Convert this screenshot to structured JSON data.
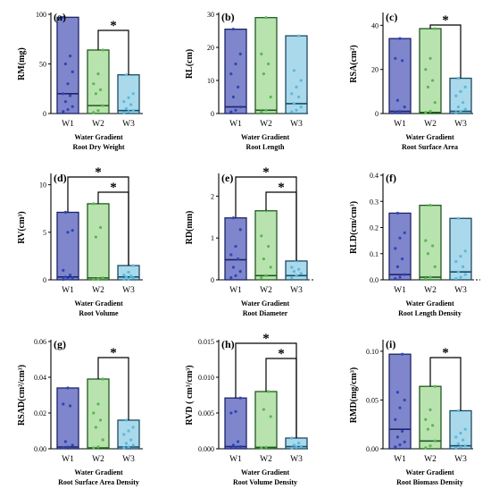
{
  "figure": {
    "colors": {
      "W1": {
        "fill": "#7f86cc",
        "stroke": "#1c2468",
        "point": "#2f46b5"
      },
      "W2": {
        "fill": "#b9e3ae",
        "stroke": "#1f5a1f",
        "point": "#59b84f"
      },
      "W3": {
        "fill": "#a9d9ea",
        "stroke": "#1b4a63",
        "point": "#5cb8dd"
      }
    }
  },
  "chart_data": [
    {
      "panel": "(a)",
      "type": "bar",
      "ylabel": "RM(mg)",
      "xlabel": "Water Gradient",
      "subtitle": "Root Dry Weight",
      "categories": [
        "W1",
        "W2",
        "W3"
      ],
      "ylim": [
        0,
        100
      ],
      "yticks": [
        0,
        50,
        100
      ],
      "ytick_labels": [
        "0",
        "50",
        "100"
      ],
      "series": [
        {
          "values": [
            97,
            64,
            39
          ],
          "medians": [
            20,
            8,
            3
          ],
          "points": [
            [
              2,
              4,
              7,
              12,
              18,
              20,
              30,
              42,
              50,
              58,
              97
            ],
            [
              1,
              3,
              8,
              20,
              24,
              30,
              40,
              64
            ],
            [
              1,
              2,
              3,
              5,
              9,
              12,
              16,
              20,
              39
            ]
          ]
        }
      ],
      "significance": [
        {
          "from": "W2",
          "to": "W3",
          "label": "*"
        }
      ],
      "zero_line": false
    },
    {
      "panel": "(b)",
      "type": "bar",
      "ylabel": "RL(cm)",
      "xlabel": "Water Gradient",
      "subtitle": "Root Length",
      "categories": [
        "W1",
        "W2",
        "W3"
      ],
      "ylim": [
        0,
        30
      ],
      "yticks": [
        0,
        10,
        20,
        30
      ],
      "ytick_labels": [
        "0",
        "10",
        "20",
        "30"
      ],
      "series": [
        {
          "values": [
            25.5,
            29,
            23.5
          ],
          "medians": [
            2,
            1,
            3
          ],
          "points": [
            [
              0.5,
              1,
              2,
              5,
              8,
              12,
              15,
              18,
              25.5
            ],
            [
              0.5,
              1,
              5,
              12,
              15,
              18,
              29
            ],
            [
              0.5,
              1,
              2,
              3,
              5,
              6,
              8,
              10,
              13,
              23.5
            ]
          ]
        }
      ],
      "significance": [],
      "zero_line": false
    },
    {
      "panel": "(c)",
      "type": "bar",
      "ylabel": "RSA(cm²)",
      "xlabel": "Water Gradient",
      "subtitle": "Root Surface Area",
      "categories": [
        "W1",
        "W2",
        "W3"
      ],
      "ylim": [
        0,
        45
      ],
      "yticks": [
        0,
        20,
        40
      ],
      "ytick_labels": [
        "0",
        "20",
        "40"
      ],
      "series": [
        {
          "values": [
            34,
            38.5,
            16
          ],
          "medians": [
            1,
            0.5,
            1
          ],
          "points": [
            [
              0.5,
              1,
              3,
              6,
              24,
              25,
              34
            ],
            [
              0.5,
              1,
              5,
              12,
              15,
              20,
              25,
              38.5
            ],
            [
              0.5,
              1,
              2,
              3,
              5,
              8,
              10,
              12,
              16
            ]
          ]
        }
      ],
      "significance": [
        {
          "from": "W2",
          "to": "W3",
          "label": "*"
        }
      ],
      "zero_line": false
    },
    {
      "panel": "(d)",
      "type": "bar",
      "ylabel": "RV(cm³)",
      "xlabel": "Water Gradient",
      "subtitle": "Root Volume",
      "categories": [
        "W1",
        "W2",
        "W3"
      ],
      "ylim": [
        0,
        11
      ],
      "yticks": [
        0,
        5,
        10
      ],
      "ytick_labels": [
        "0",
        "5",
        "10"
      ],
      "series": [
        {
          "values": [
            7.1,
            8,
            1.5
          ],
          "medians": [
            0.3,
            0.2,
            0.3
          ],
          "points": [
            [
              0.05,
              0.1,
              0.2,
              0.3,
              0.5,
              1,
              5,
              5.2,
              7.1
            ],
            [
              0.05,
              0.1,
              0.2,
              4.5,
              5.5,
              8
            ],
            [
              0.05,
              0.1,
              0.2,
              0.3,
              0.4,
              0.5,
              0.8,
              1.5
            ]
          ]
        }
      ],
      "significance": [
        {
          "from": "W1",
          "to": "W3",
          "label": "*"
        },
        {
          "from": "W2",
          "to": "W3",
          "label": "*"
        }
      ],
      "zero_line": false
    },
    {
      "panel": "(e)",
      "type": "bar",
      "ylabel": "RD(mm)",
      "xlabel": "Water Gradient",
      "subtitle": "Root Diameter",
      "categories": [
        "W1",
        "W2",
        "W3"
      ],
      "ylim": [
        0,
        2.5
      ],
      "yticks": [
        0,
        1,
        2
      ],
      "ytick_labels": [
        "0",
        "1",
        "2"
      ],
      "series": [
        {
          "values": [
            1.48,
            1.65,
            0.45
          ],
          "medians": [
            0.48,
            0.1,
            0.1
          ],
          "points": [
            [
              0.05,
              0.1,
              0.2,
              0.3,
              0.5,
              0.6,
              0.8,
              1.2,
              1.48
            ],
            [
              0.05,
              0.1,
              0.3,
              0.5,
              0.8,
              1.05,
              1.65
            ],
            [
              0.05,
              0.1,
              0.15,
              0.2,
              0.25,
              0.3,
              0.45
            ]
          ]
        }
      ],
      "significance": [
        {
          "from": "W1",
          "to": "W3",
          "label": "*"
        },
        {
          "from": "W2",
          "to": "W3",
          "label": "*"
        }
      ],
      "zero_line": true
    },
    {
      "panel": "(f)",
      "type": "bar",
      "ylabel": "RLD(cm/cm³)",
      "xlabel": "Water Gradient",
      "subtitle": "Root Length Density",
      "categories": [
        "W1",
        "W2",
        "W3"
      ],
      "ylim": [
        0,
        0.4
      ],
      "yticks": [
        0,
        0.1,
        0.2,
        0.3,
        0.4
      ],
      "ytick_labels": [
        "0.0",
        "0.1",
        "0.2",
        "0.3",
        "0.4"
      ],
      "series": [
        {
          "values": [
            0.255,
            0.285,
            0.235
          ],
          "medians": [
            0.02,
            0.01,
            0.03
          ],
          "points": [
            [
              0.005,
              0.01,
              0.02,
              0.05,
              0.08,
              0.12,
              0.16,
              0.18,
              0.255
            ],
            [
              0.005,
              0.01,
              0.05,
              0.1,
              0.13,
              0.15,
              0.285
            ],
            [
              0.005,
              0.01,
              0.02,
              0.03,
              0.05,
              0.07,
              0.09,
              0.11,
              0.235
            ]
          ]
        }
      ],
      "significance": [],
      "zero_line": true
    },
    {
      "panel": "(g)",
      "type": "bar",
      "ylabel": "RSAD(cm²/cm³)",
      "xlabel": "Water Gradient",
      "subtitle": "Root Surface Area Density",
      "categories": [
        "W1",
        "W2",
        "W3"
      ],
      "ylim": [
        0,
        0.06
      ],
      "yticks": [
        0,
        0.02,
        0.04,
        0.06
      ],
      "ytick_labels": [
        "0.00",
        "0.02",
        "0.04",
        "0.06"
      ],
      "series": [
        {
          "values": [
            0.034,
            0.039,
            0.016
          ],
          "medians": [
            0.001,
            0.0005,
            0.001
          ],
          "points": [
            [
              0.0005,
              0.001,
              0.002,
              0.004,
              0.024,
              0.025,
              0.034
            ],
            [
              0.0005,
              0.001,
              0.005,
              0.012,
              0.016,
              0.02,
              0.025,
              0.039
            ],
            [
              0.0005,
              0.001,
              0.002,
              0.003,
              0.005,
              0.008,
              0.01,
              0.012,
              0.016
            ]
          ]
        }
      ],
      "significance": [
        {
          "from": "W2",
          "to": "W3",
          "label": "*"
        }
      ],
      "zero_line": false
    },
    {
      "panel": "(h)",
      "type": "bar",
      "ylabel": "RVD ( cm³/cm³)",
      "xlabel": "Water Gradient",
      "subtitle": "Root Volume Density",
      "categories": [
        "W1",
        "W2",
        "W3"
      ],
      "ylim": [
        0,
        0.015
      ],
      "yticks": [
        0,
        0.005,
        0.01,
        0.015
      ],
      "ytick_labels": [
        "0.000",
        "0.005",
        "0.010",
        "0.015"
      ],
      "series": [
        {
          "values": [
            0.0071,
            0.008,
            0.0015
          ],
          "medians": [
            0.0003,
            0.0002,
            0.0003
          ],
          "points": [
            [
              0.0001,
              0.0002,
              0.0003,
              0.0005,
              0.001,
              0.005,
              0.0052,
              0.0071
            ],
            [
              0.0001,
              0.0002,
              0.0045,
              0.0055,
              0.008
            ],
            [
              0.0001,
              0.0002,
              0.0003,
              0.0005,
              0.0008,
              0.0015
            ]
          ]
        }
      ],
      "significance": [
        {
          "from": "W1",
          "to": "W3",
          "label": "*"
        },
        {
          "from": "W2",
          "to": "W3",
          "label": "*"
        }
      ],
      "zero_line": false
    },
    {
      "panel": "(i)",
      "type": "bar",
      "ylabel": "RMD(mg/cm³)",
      "xlabel": "Water Gradient",
      "subtitle": "Root Biomass Density",
      "categories": [
        "W1",
        "W2",
        "W3"
      ],
      "ylim": [
        0,
        0.11
      ],
      "yticks": [
        0,
        0.05,
        0.1
      ],
      "ytick_labels": [
        "0.00",
        "0.05",
        "0.10"
      ],
      "series": [
        {
          "values": [
            0.097,
            0.064,
            0.039
          ],
          "medians": [
            0.02,
            0.008,
            0.003
          ],
          "points": [
            [
              0.002,
              0.004,
              0.007,
              0.012,
              0.018,
              0.03,
              0.042,
              0.05,
              0.058,
              0.097
            ],
            [
              0.001,
              0.003,
              0.008,
              0.02,
              0.024,
              0.03,
              0.04,
              0.064
            ],
            [
              0.001,
              0.002,
              0.003,
              0.005,
              0.009,
              0.012,
              0.016,
              0.02,
              0.039
            ]
          ]
        }
      ],
      "significance": [
        {
          "from": "W2",
          "to": "W3",
          "label": "*"
        }
      ],
      "zero_line": false
    }
  ]
}
